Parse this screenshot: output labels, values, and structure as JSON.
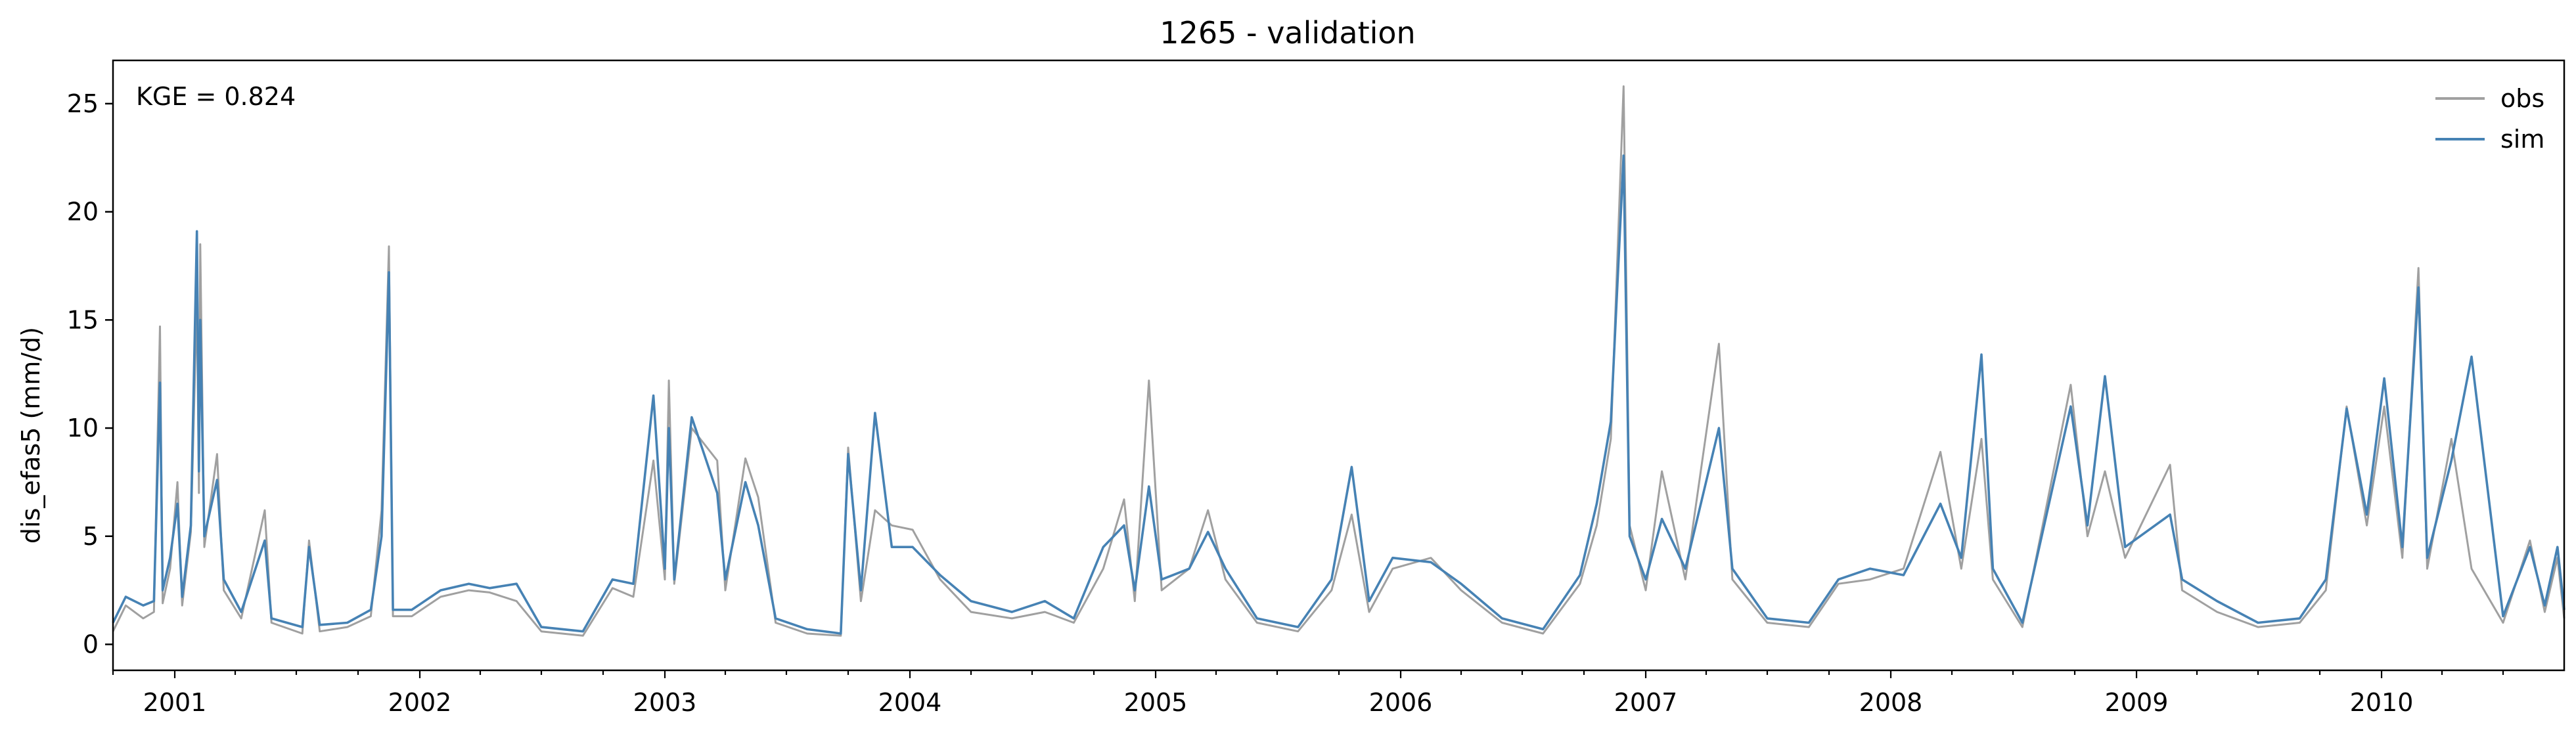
{
  "chart_data": {
    "type": "line",
    "title": "1265 - validation",
    "xlabel": "",
    "ylabel": "dis_efas5 (mm/d)",
    "annotation": "KGE = 0.824",
    "xlim": [
      "2000-10-01",
      "2010-09-30"
    ],
    "ylim": [
      -1.2,
      27
    ],
    "x_ticks": [
      "2001",
      "2002",
      "2003",
      "2004",
      "2005",
      "2006",
      "2007",
      "2008",
      "2009",
      "2010"
    ],
    "y_ticks": [
      0,
      5,
      10,
      15,
      20,
      25
    ],
    "legend": {
      "position": "top-right",
      "entries": [
        "obs",
        "sim"
      ]
    },
    "grid": false,
    "series": [
      {
        "name": "obs",
        "color": "#a0a0a0",
        "points": [
          [
            "2000-10-01",
            0.6
          ],
          [
            "2000-10-20",
            1.8
          ],
          [
            "2000-11-15",
            1.2
          ],
          [
            "2000-12-01",
            1.5
          ],
          [
            "2000-12-10",
            14.7
          ],
          [
            "2000-12-14",
            1.9
          ],
          [
            "2000-12-25",
            3.5
          ],
          [
            "2001-01-05",
            7.5
          ],
          [
            "2001-01-12",
            1.8
          ],
          [
            "2001-01-25",
            5.2
          ],
          [
            "2001-02-03",
            16.0
          ],
          [
            "2001-02-06",
            7.0
          ],
          [
            "2001-02-08",
            18.5
          ],
          [
            "2001-02-14",
            4.5
          ],
          [
            "2001-03-05",
            8.8
          ],
          [
            "2001-03-15",
            2.5
          ],
          [
            "2001-04-10",
            1.2
          ],
          [
            "2001-05-15",
            6.2
          ],
          [
            "2001-05-25",
            1.0
          ],
          [
            "2001-07-10",
            0.5
          ],
          [
            "2001-07-20",
            4.8
          ],
          [
            "2001-08-05",
            0.6
          ],
          [
            "2001-09-15",
            0.8
          ],
          [
            "2001-10-20",
            1.3
          ],
          [
            "2001-11-05",
            6.2
          ],
          [
            "2001-11-16",
            18.4
          ],
          [
            "2001-11-22",
            1.3
          ],
          [
            "2001-12-20",
            1.3
          ],
          [
            "2002-02-01",
            2.2
          ],
          [
            "2002-03-15",
            2.5
          ],
          [
            "2002-04-15",
            2.4
          ],
          [
            "2002-05-25",
            2.0
          ],
          [
            "2002-07-01",
            0.6
          ],
          [
            "2002-09-01",
            0.4
          ],
          [
            "2002-10-15",
            2.6
          ],
          [
            "2002-11-15",
            2.2
          ],
          [
            "2002-12-15",
            8.5
          ],
          [
            "2003-01-01",
            3.0
          ],
          [
            "2003-01-07",
            12.2
          ],
          [
            "2003-01-15",
            2.8
          ],
          [
            "2003-02-10",
            10.0
          ],
          [
            "2003-03-20",
            8.5
          ],
          [
            "2003-04-01",
            2.5
          ],
          [
            "2003-05-01",
            8.6
          ],
          [
            "2003-05-20",
            6.8
          ],
          [
            "2003-06-15",
            1.0
          ],
          [
            "2003-08-01",
            0.5
          ],
          [
            "2003-09-20",
            0.4
          ],
          [
            "2003-10-01",
            9.1
          ],
          [
            "2003-10-20",
            2.0
          ],
          [
            "2003-11-10",
            6.2
          ],
          [
            "2003-12-05",
            5.5
          ],
          [
            "2004-01-05",
            5.3
          ],
          [
            "2004-02-15",
            3.0
          ],
          [
            "2004-04-01",
            1.5
          ],
          [
            "2004-06-01",
            1.2
          ],
          [
            "2004-07-20",
            1.5
          ],
          [
            "2004-09-01",
            1.0
          ],
          [
            "2004-10-15",
            3.5
          ],
          [
            "2004-11-15",
            6.7
          ],
          [
            "2004-12-01",
            2.0
          ],
          [
            "2004-12-22",
            12.2
          ],
          [
            "2005-01-10",
            2.5
          ],
          [
            "2005-02-20",
            3.5
          ],
          [
            "2005-03-20",
            6.2
          ],
          [
            "2005-04-15",
            3.0
          ],
          [
            "2005-06-01",
            1.0
          ],
          [
            "2005-08-01",
            0.6
          ],
          [
            "2005-09-20",
            2.5
          ],
          [
            "2005-10-20",
            6.0
          ],
          [
            "2005-11-15",
            1.5
          ],
          [
            "2005-12-20",
            3.5
          ],
          [
            "2006-02-15",
            4.0
          ],
          [
            "2006-04-01",
            2.5
          ],
          [
            "2006-06-01",
            1.0
          ],
          [
            "2006-08-01",
            0.5
          ],
          [
            "2006-09-25",
            2.8
          ],
          [
            "2006-10-20",
            5.5
          ],
          [
            "2006-11-10",
            9.5
          ],
          [
            "2006-11-29",
            25.8
          ],
          [
            "2006-12-08",
            5.5
          ],
          [
            "2007-01-01",
            2.5
          ],
          [
            "2007-01-25",
            8.0
          ],
          [
            "2007-03-01",
            3.0
          ],
          [
            "2007-04-20",
            13.9
          ],
          [
            "2007-05-10",
            3.0
          ],
          [
            "2007-07-01",
            1.0
          ],
          [
            "2007-09-01",
            0.8
          ],
          [
            "2007-10-15",
            2.8
          ],
          [
            "2007-12-01",
            3.0
          ],
          [
            "2008-01-20",
            3.5
          ],
          [
            "2008-03-15",
            8.9
          ],
          [
            "2008-04-15",
            3.5
          ],
          [
            "2008-05-15",
            9.5
          ],
          [
            "2008-06-01",
            3.0
          ],
          [
            "2008-07-15",
            0.8
          ],
          [
            "2008-09-25",
            12.0
          ],
          [
            "2008-10-20",
            5.0
          ],
          [
            "2008-11-15",
            8.0
          ],
          [
            "2008-12-15",
            4.0
          ],
          [
            "2009-02-20",
            8.3
          ],
          [
            "2009-03-10",
            2.5
          ],
          [
            "2009-05-01",
            1.5
          ],
          [
            "2009-07-01",
            0.8
          ],
          [
            "2009-09-01",
            1.0
          ],
          [
            "2009-10-10",
            2.5
          ],
          [
            "2009-11-10",
            11.0
          ],
          [
            "2009-12-10",
            5.5
          ],
          [
            "2010-01-05",
            11.0
          ],
          [
            "2010-02-01",
            4.0
          ],
          [
            "2010-02-25",
            17.4
          ],
          [
            "2010-03-10",
            3.5
          ],
          [
            "2010-04-15",
            9.5
          ],
          [
            "2010-05-15",
            3.5
          ],
          [
            "2010-07-01",
            1.0
          ],
          [
            "2010-08-10",
            4.8
          ],
          [
            "2010-09-01",
            1.5
          ],
          [
            "2010-09-20",
            4.0
          ],
          [
            "2010-09-30",
            1.2
          ]
        ]
      },
      {
        "name": "sim",
        "color": "#4682b4",
        "points": [
          [
            "2000-10-01",
            1.0
          ],
          [
            "2000-10-20",
            2.2
          ],
          [
            "2000-11-15",
            1.8
          ],
          [
            "2000-12-01",
            2.0
          ],
          [
            "2000-12-10",
            12.1
          ],
          [
            "2000-12-14",
            2.5
          ],
          [
            "2000-12-25",
            4.0
          ],
          [
            "2001-01-05",
            6.5
          ],
          [
            "2001-01-12",
            2.2
          ],
          [
            "2001-01-25",
            5.5
          ],
          [
            "2001-02-03",
            19.1
          ],
          [
            "2001-02-06",
            8.0
          ],
          [
            "2001-02-08",
            15.0
          ],
          [
            "2001-02-14",
            5.0
          ],
          [
            "2001-03-05",
            7.6
          ],
          [
            "2001-03-15",
            3.0
          ],
          [
            "2001-04-10",
            1.5
          ],
          [
            "2001-05-15",
            4.8
          ],
          [
            "2001-05-25",
            1.2
          ],
          [
            "2001-07-10",
            0.8
          ],
          [
            "2001-07-20",
            4.5
          ],
          [
            "2001-08-05",
            0.9
          ],
          [
            "2001-09-15",
            1.0
          ],
          [
            "2001-10-20",
            1.6
          ],
          [
            "2001-11-05",
            5.0
          ],
          [
            "2001-11-16",
            17.2
          ],
          [
            "2001-11-22",
            1.6
          ],
          [
            "2001-12-20",
            1.6
          ],
          [
            "2002-02-01",
            2.5
          ],
          [
            "2002-03-15",
            2.8
          ],
          [
            "2002-04-15",
            2.6
          ],
          [
            "2002-05-25",
            2.8
          ],
          [
            "2002-07-01",
            0.8
          ],
          [
            "2002-09-01",
            0.6
          ],
          [
            "2002-10-15",
            3.0
          ],
          [
            "2002-11-15",
            2.8
          ],
          [
            "2002-12-15",
            11.5
          ],
          [
            "2003-01-01",
            3.5
          ],
          [
            "2003-01-07",
            10.0
          ],
          [
            "2003-01-15",
            3.0
          ],
          [
            "2003-02-10",
            10.5
          ],
          [
            "2003-03-20",
            7.0
          ],
          [
            "2003-04-01",
            3.0
          ],
          [
            "2003-05-01",
            7.5
          ],
          [
            "2003-05-20",
            5.5
          ],
          [
            "2003-06-15",
            1.2
          ],
          [
            "2003-08-01",
            0.7
          ],
          [
            "2003-09-20",
            0.5
          ],
          [
            "2003-10-01",
            8.8
          ],
          [
            "2003-10-20",
            2.5
          ],
          [
            "2003-11-10",
            10.7
          ],
          [
            "2003-12-05",
            4.5
          ],
          [
            "2004-01-05",
            4.5
          ],
          [
            "2004-02-15",
            3.2
          ],
          [
            "2004-04-01",
            2.0
          ],
          [
            "2004-06-01",
            1.5
          ],
          [
            "2004-07-20",
            2.0
          ],
          [
            "2004-09-01",
            1.2
          ],
          [
            "2004-10-15",
            4.5
          ],
          [
            "2004-11-15",
            5.5
          ],
          [
            "2004-12-01",
            2.5
          ],
          [
            "2004-12-22",
            7.3
          ],
          [
            "2005-01-10",
            3.0
          ],
          [
            "2005-02-20",
            3.5
          ],
          [
            "2005-03-20",
            5.2
          ],
          [
            "2005-04-15",
            3.5
          ],
          [
            "2005-06-01",
            1.2
          ],
          [
            "2005-08-01",
            0.8
          ],
          [
            "2005-09-20",
            3.0
          ],
          [
            "2005-10-20",
            8.2
          ],
          [
            "2005-11-15",
            2.0
          ],
          [
            "2005-12-20",
            4.0
          ],
          [
            "2006-02-15",
            3.8
          ],
          [
            "2006-04-01",
            2.8
          ],
          [
            "2006-06-01",
            1.2
          ],
          [
            "2006-08-01",
            0.7
          ],
          [
            "2006-09-25",
            3.2
          ],
          [
            "2006-10-20",
            6.5
          ],
          [
            "2006-11-10",
            10.3
          ],
          [
            "2006-11-29",
            22.6
          ],
          [
            "2006-12-08",
            5.0
          ],
          [
            "2007-01-01",
            3.0
          ],
          [
            "2007-01-25",
            5.8
          ],
          [
            "2007-03-01",
            3.5
          ],
          [
            "2007-04-20",
            10.0
          ],
          [
            "2007-05-10",
            3.5
          ],
          [
            "2007-07-01",
            1.2
          ],
          [
            "2007-09-01",
            1.0
          ],
          [
            "2007-10-15",
            3.0
          ],
          [
            "2007-12-01",
            3.5
          ],
          [
            "2008-01-20",
            3.2
          ],
          [
            "2008-03-15",
            6.5
          ],
          [
            "2008-04-15",
            4.0
          ],
          [
            "2008-05-15",
            13.4
          ],
          [
            "2008-06-01",
            3.5
          ],
          [
            "2008-07-15",
            1.0
          ],
          [
            "2008-09-25",
            11.0
          ],
          [
            "2008-10-20",
            5.5
          ],
          [
            "2008-11-15",
            12.4
          ],
          [
            "2008-12-15",
            4.5
          ],
          [
            "2009-02-20",
            6.0
          ],
          [
            "2009-03-10",
            3.0
          ],
          [
            "2009-05-01",
            2.0
          ],
          [
            "2009-07-01",
            1.0
          ],
          [
            "2009-09-01",
            1.2
          ],
          [
            "2009-10-10",
            3.0
          ],
          [
            "2009-11-10",
            10.9
          ],
          [
            "2009-12-10",
            6.0
          ],
          [
            "2010-01-05",
            12.3
          ],
          [
            "2010-02-01",
            4.5
          ],
          [
            "2010-02-25",
            16.5
          ],
          [
            "2010-03-10",
            4.0
          ],
          [
            "2010-04-15",
            8.5
          ],
          [
            "2010-05-15",
            13.3
          ],
          [
            "2010-07-01",
            1.3
          ],
          [
            "2010-08-10",
            4.5
          ],
          [
            "2010-09-01",
            1.8
          ],
          [
            "2010-09-20",
            4.5
          ],
          [
            "2010-09-30",
            1.6
          ]
        ]
      }
    ]
  }
}
